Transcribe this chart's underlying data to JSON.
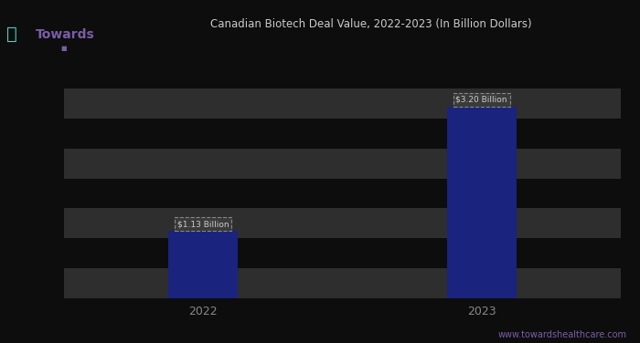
{
  "categories": [
    "2022",
    "2023"
  ],
  "values": [
    1.13,
    3.2
  ],
  "bar_labels": [
    "$1.13 Billion",
    "$3.20 Billion"
  ],
  "bar_color": "#1a237e",
  "background_color": "#0d0d0d",
  "plot_bg_color": "#0d0d0d",
  "header_bg_color": "#3a3a3a",
  "grid_stripe_color": "#2e2e2e",
  "text_color": "#cccccc",
  "title": "Canadian Biotech Deal Value, 2022-2023 (In Billion Dollars)",
  "title_color": "#cccccc",
  "ylim": [
    0,
    4.0
  ],
  "yticks": [
    0.0,
    0.5,
    1.0,
    1.5,
    2.0,
    2.5,
    3.0,
    3.5,
    4.0
  ],
  "bar_width": 0.25,
  "source_text": "www.towardshealthcare.com",
  "source_color": "#7b5ea7",
  "teal_line_color": "#4dd0c4",
  "purple_accent": "#7b5ea7",
  "label_box_bg": "#3a3a3a",
  "label_box_edge": "#888888",
  "xtick_label_color": "#888888",
  "logo_text": "Towards",
  "logo_color": "#7b5ea7"
}
